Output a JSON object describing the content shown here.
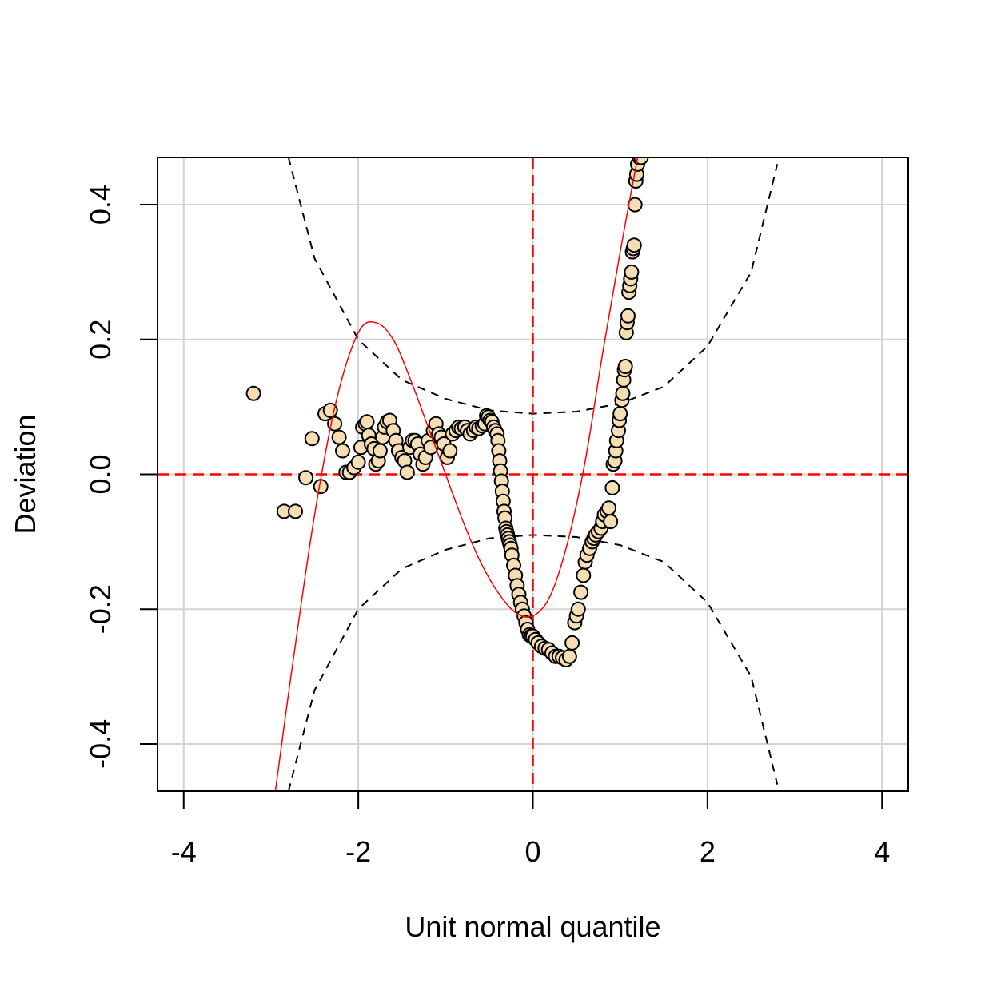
{
  "chart_data": {
    "type": "scatter",
    "title": "",
    "xlabel": "Unit normal quantile",
    "ylabel": "Deviation",
    "xlim": [
      -4.3,
      4.3
    ],
    "ylim": [
      -0.47,
      0.47
    ],
    "xticks": [
      -4,
      -2,
      0,
      2,
      4
    ],
    "xtick_labels": [
      "-4",
      "-2",
      "0",
      "2",
      "4"
    ],
    "yticks": [
      -0.4,
      -0.2,
      0.0,
      0.2,
      0.4
    ],
    "ytick_labels": [
      "-0.4",
      "-0.2",
      "0.0",
      "0.2",
      "0.4"
    ],
    "grid": true,
    "colors": {
      "point_fill": "#F5DEB3",
      "point_stroke": "#000000",
      "reference_line": "#FF0000",
      "fit_curve": "#FF0000",
      "confidence_band": "#000000",
      "grid": "#D3D3D3"
    },
    "reference_lines": {
      "x": 0,
      "y": 0
    },
    "fit_curve": {
      "x": [
        -2.95,
        -2.75,
        -2.5,
        -2.25,
        -2.0,
        -1.8,
        -1.6,
        -1.4,
        -1.2,
        -1.0,
        -0.8,
        -0.6,
        -0.4,
        -0.2,
        0.0,
        0.2,
        0.4,
        0.6,
        0.8,
        1.0,
        1.2
      ],
      "y": [
        -0.47,
        -0.28,
        -0.06,
        0.11,
        0.21,
        0.225,
        0.2,
        0.14,
        0.07,
        0.0,
        -0.07,
        -0.13,
        -0.175,
        -0.205,
        -0.21,
        -0.18,
        -0.1,
        0.02,
        0.18,
        0.33,
        0.47
      ]
    },
    "confidence_band": {
      "x": [
        -2.8,
        -2.5,
        -2.0,
        -1.5,
        -1.0,
        -0.5,
        0.0,
        0.5,
        1.0,
        1.5,
        2.0,
        2.5,
        2.8
      ],
      "upper": [
        0.47,
        0.32,
        0.2,
        0.14,
        0.112,
        0.095,
        0.09,
        0.093,
        0.105,
        0.13,
        0.19,
        0.3,
        0.46
      ],
      "lower": [
        -0.47,
        -0.32,
        -0.2,
        -0.14,
        -0.112,
        -0.095,
        -0.09,
        -0.093,
        -0.105,
        -0.13,
        -0.19,
        -0.3,
        -0.46
      ]
    },
    "series": [
      {
        "x": [
          -3.2,
          -2.85,
          -2.72,
          -2.6,
          -2.53,
          -2.43,
          -2.38,
          -2.32,
          -2.27,
          -2.22,
          -2.18,
          -2.14,
          -2.1,
          -2.05,
          -2.0,
          -1.97,
          -1.95,
          -1.92,
          -1.9,
          -1.88,
          -1.85,
          -1.82,
          -1.8,
          -1.77,
          -1.75,
          -1.72,
          -1.7,
          -1.67,
          -1.64,
          -1.6,
          -1.57,
          -1.54,
          -1.5,
          -1.47,
          -1.44,
          -1.41,
          -1.38,
          -1.35,
          -1.32,
          -1.29,
          -1.26,
          -1.23,
          -1.2,
          -1.17,
          -1.14,
          -1.11,
          -1.08,
          -1.05,
          -1.02,
          -0.98,
          -0.95,
          -0.92,
          -0.88,
          -0.85,
          -0.82,
          -0.78,
          -0.75,
          -0.72,
          -0.68,
          -0.65,
          -0.62,
          -0.58,
          -0.55,
          -0.53,
          -0.51,
          -0.49,
          -0.47,
          -0.45,
          -0.43,
          -0.41,
          -0.4,
          -0.39,
          -0.38,
          -0.37,
          -0.36,
          -0.35,
          -0.34,
          -0.33,
          -0.32,
          -0.31,
          -0.3,
          -0.29,
          -0.28,
          -0.27,
          -0.26,
          -0.25,
          -0.24,
          -0.22,
          -0.2,
          -0.18,
          -0.16,
          -0.14,
          -0.12,
          -0.1,
          -0.08,
          -0.06,
          -0.04,
          -0.02,
          0.0,
          0.03,
          0.06,
          0.1,
          0.14,
          0.18,
          0.22,
          0.26,
          0.3,
          0.34,
          0.38,
          0.42,
          0.45,
          0.48,
          0.5,
          0.52,
          0.55,
          0.58,
          0.6,
          0.62,
          0.65,
          0.68,
          0.7,
          0.72,
          0.75,
          0.78,
          0.8,
          0.82,
          0.85,
          0.87,
          0.89,
          0.91,
          0.92,
          0.94,
          0.95,
          0.96,
          0.98,
          0.99,
          1.0,
          1.02,
          1.03,
          1.04,
          1.05,
          1.06,
          1.07,
          1.08,
          1.09,
          1.1,
          1.11,
          1.12,
          1.13,
          1.14,
          1.15,
          1.16,
          1.17,
          1.18,
          1.19,
          1.2,
          1.22,
          1.24
        ],
        "y": [
          0.12,
          -0.055,
          -0.055,
          -0.005,
          0.053,
          -0.018,
          0.09,
          0.095,
          0.075,
          0.055,
          0.035,
          0.003,
          0.003,
          0.01,
          0.018,
          0.04,
          0.07,
          0.075,
          0.078,
          0.058,
          0.045,
          0.038,
          0.015,
          0.02,
          0.035,
          0.055,
          0.07,
          0.078,
          0.08,
          0.065,
          0.05,
          0.035,
          0.025,
          0.02,
          0.003,
          0.04,
          0.05,
          0.05,
          0.045,
          0.03,
          0.015,
          0.025,
          0.05,
          0.04,
          0.065,
          0.075,
          0.06,
          0.055,
          0.045,
          0.025,
          0.035,
          0.06,
          0.065,
          0.07,
          0.068,
          0.07,
          0.065,
          0.06,
          0.065,
          0.07,
          0.068,
          0.072,
          0.075,
          0.087,
          0.085,
          0.08,
          0.078,
          0.07,
          0.065,
          0.06,
          0.05,
          0.035,
          0.02,
          0.005,
          -0.01,
          -0.025,
          -0.04,
          -0.055,
          -0.065,
          -0.08,
          -0.085,
          -0.09,
          -0.095,
          -0.1,
          -0.105,
          -0.11,
          -0.12,
          -0.135,
          -0.15,
          -0.165,
          -0.178,
          -0.19,
          -0.2,
          -0.21,
          -0.22,
          -0.23,
          -0.238,
          -0.24,
          -0.24,
          -0.245,
          -0.25,
          -0.255,
          -0.258,
          -0.26,
          -0.265,
          -0.27,
          -0.27,
          -0.272,
          -0.275,
          -0.27,
          -0.25,
          -0.22,
          -0.21,
          -0.2,
          -0.175,
          -0.15,
          -0.13,
          -0.12,
          -0.11,
          -0.1,
          -0.095,
          -0.09,
          -0.085,
          -0.08,
          -0.07,
          -0.06,
          -0.055,
          -0.05,
          -0.07,
          -0.02,
          0.015,
          0.02,
          0.035,
          0.05,
          0.065,
          0.08,
          0.09,
          0.11,
          0.12,
          0.14,
          0.155,
          0.16,
          0.21,
          0.225,
          0.235,
          0.27,
          0.28,
          0.29,
          0.3,
          0.33,
          0.335,
          0.34,
          0.4,
          0.435,
          0.445,
          0.46,
          0.47,
          0.47
        ]
      }
    ]
  }
}
